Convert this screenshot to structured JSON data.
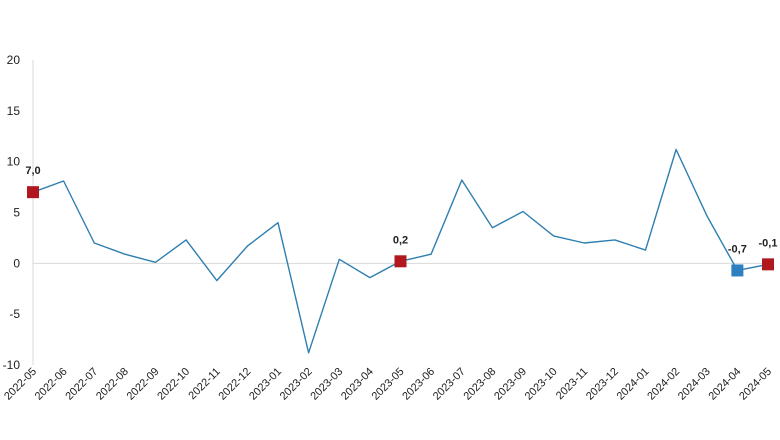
{
  "chart_data": {
    "type": "line",
    "title": "",
    "xlabel": "",
    "ylabel": "",
    "ylim": [
      -10,
      20
    ],
    "yticks": [
      -10,
      -5,
      0,
      5,
      10,
      15,
      20
    ],
    "ytick_labels": [
      "-10",
      "-5",
      "0",
      "5",
      "10",
      "15",
      "20"
    ],
    "grid": false,
    "zero_line": true,
    "categories": [
      "2022-05",
      "2022-06",
      "2022-07",
      "2022-08",
      "2022-09",
      "2022-10",
      "2022-11",
      "2022-12",
      "2023-01",
      "2023-02",
      "2023-03",
      "2023-04",
      "2023-05",
      "2023-06",
      "2023-07",
      "2023-08",
      "2023-09",
      "2023-10",
      "2023-11",
      "2023-12",
      "2024-01",
      "2024-02",
      "2024-03",
      "2024-04",
      "2024-05"
    ],
    "series": [
      {
        "values": [
          7.0,
          8.1,
          2.0,
          0.9,
          0.1,
          2.3,
          -1.7,
          1.7,
          4.0,
          -8.8,
          0.4,
          -1.4,
          0.2,
          0.9,
          8.2,
          3.5,
          5.1,
          2.7,
          2.0,
          2.3,
          1.3,
          11.2,
          4.7,
          -0.7,
          -0.1
        ],
        "color": "#2e7fb0"
      }
    ],
    "highlights": [
      {
        "index": 0,
        "label": "7,0",
        "color": "#b0171f"
      },
      {
        "index": 12,
        "label": "0,2",
        "color": "#b0171f"
      },
      {
        "index": 23,
        "label": "-0,7",
        "color": "#2e7fc0"
      },
      {
        "index": 24,
        "label": "-0,1",
        "color": "#b0171f"
      }
    ]
  }
}
